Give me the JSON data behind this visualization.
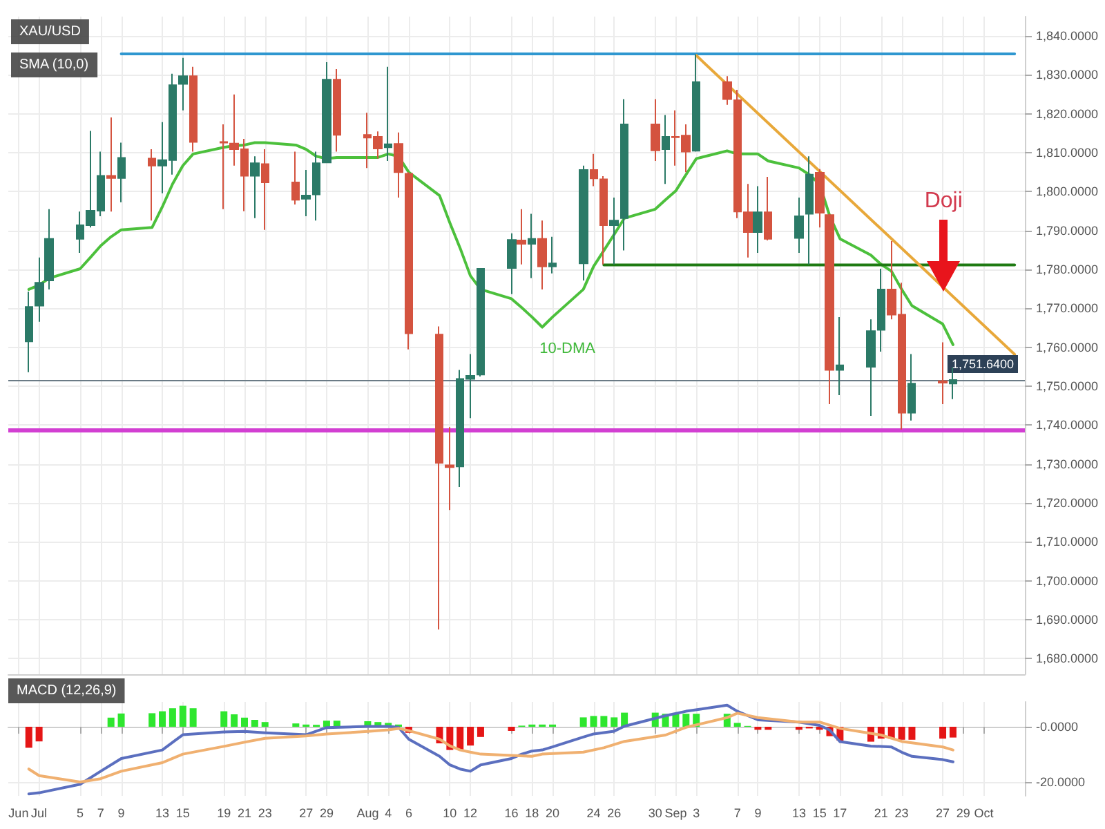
{
  "chart_data": [
    {
      "type": "candlestick",
      "title": "XAU/USD",
      "subtitle": "SMA (10,0)",
      "xlim": [
        "--06-28",
        "--10-05"
      ],
      "ylim": [
        1676,
        1845
      ],
      "xticks": [
        {
          "value": "--06-29",
          "label": "Jun"
        },
        {
          "value": "--07-01",
          "label": "Jul"
        },
        {
          "value": "--07-05",
          "label": "5"
        },
        {
          "value": "--07-07",
          "label": "7"
        },
        {
          "value": "--07-09",
          "label": "9"
        },
        {
          "value": "--07-13",
          "label": "13"
        },
        {
          "value": "--07-15",
          "label": "15"
        },
        {
          "value": "--07-19",
          "label": "19"
        },
        {
          "value": "--07-21",
          "label": "21"
        },
        {
          "value": "--07-23",
          "label": "23"
        },
        {
          "value": "--07-27",
          "label": "27"
        },
        {
          "value": "--07-29",
          "label": "29"
        },
        {
          "value": "--08-02",
          "label": "Aug"
        },
        {
          "value": "--08-04",
          "label": "4"
        },
        {
          "value": "--08-06",
          "label": "6"
        },
        {
          "value": "--08-10",
          "label": "10"
        },
        {
          "value": "--08-12",
          "label": "12"
        },
        {
          "value": "--08-16",
          "label": "16"
        },
        {
          "value": "--08-18",
          "label": "18"
        },
        {
          "value": "--08-20",
          "label": "20"
        },
        {
          "value": "--08-24",
          "label": "24"
        },
        {
          "value": "--08-26",
          "label": "26"
        },
        {
          "value": "--08-30",
          "label": "30"
        },
        {
          "value": "--09-01",
          "label": "Sep"
        },
        {
          "value": "--09-03",
          "label": "3"
        },
        {
          "value": "--09-07",
          "label": "7"
        },
        {
          "value": "--09-09",
          "label": "9"
        },
        {
          "value": "--09-13",
          "label": "13"
        },
        {
          "value": "--09-15",
          "label": "15"
        },
        {
          "value": "--09-17",
          "label": "17"
        },
        {
          "value": "--09-21",
          "label": "21"
        },
        {
          "value": "--09-23",
          "label": "23"
        },
        {
          "value": "--09-27",
          "label": "27"
        },
        {
          "value": "--09-29",
          "label": "29"
        },
        {
          "value": "--10-01",
          "label": "Oct"
        }
      ],
      "yticks": [
        {
          "value": 1680,
          "label": "1,680.0000"
        },
        {
          "value": 1690,
          "label": "1,690.0000"
        },
        {
          "value": 1700,
          "label": "1,700.0000"
        },
        {
          "value": 1710,
          "label": "1,710.0000"
        },
        {
          "value": 1720,
          "label": "1,720.0000"
        },
        {
          "value": 1730,
          "label": "1,730.0000"
        },
        {
          "value": 1740,
          "label": "1,740.0000"
        },
        {
          "value": 1750,
          "label": "1,750.0000"
        },
        {
          "value": 1760,
          "label": "1,760.0000"
        },
        {
          "value": 1770,
          "label": "1,770.0000"
        },
        {
          "value": 1780,
          "label": "1,780.0000"
        },
        {
          "value": 1790,
          "label": "1,790.0000"
        },
        {
          "value": 1800,
          "label": "1,800.0000"
        },
        {
          "value": 1810,
          "label": "1,810.0000"
        },
        {
          "value": 1820,
          "label": "1,820.0000"
        },
        {
          "value": 1830,
          "label": "1,830.0000"
        },
        {
          "value": 1840,
          "label": "1,840.0000"
        }
      ],
      "tick_labels": "y",
      "grid": true,
      "series": [
        {
          "x": [
            "--06-30",
            "--07-01",
            "--07-02",
            "--07-05",
            "--07-06",
            "--07-07",
            "--07-08",
            "--07-09",
            "--07-12",
            "--07-13",
            "--07-14",
            "--07-15",
            "--07-16",
            "--07-19",
            "--07-20",
            "--07-21",
            "--07-22",
            "--07-23",
            "--07-26",
            "--07-27",
            "--07-28",
            "--07-29",
            "--07-30",
            "--08-02",
            "--08-03",
            "--08-04",
            "--08-05",
            "--08-06",
            "--08-09",
            "--08-10",
            "--08-11",
            "--08-12",
            "--08-13",
            "--08-16",
            "--08-17",
            "--08-18",
            "--08-19",
            "--08-20",
            "--08-23",
            "--08-24",
            "--08-25",
            "--08-26",
            "--08-27",
            "--08-30",
            "--08-31",
            "--09-01",
            "--09-02",
            "--09-03",
            "--09-06",
            "--09-07",
            "--09-08",
            "--09-09",
            "--09-10",
            "--09-13",
            "--09-14",
            "--09-15",
            "--09-16",
            "--09-17",
            "--09-20",
            "--09-21",
            "--09-22",
            "--09-23",
            "--09-24",
            "--09-27",
            "--09-28"
          ],
          "ohlc": [
            [
              1761.5,
              1774.3,
              1753.6,
              1770.4
            ],
            [
              1770.7,
              1783.1,
              1766.6,
              1776.6
            ],
            [
              1777.2,
              1795.5,
              1774.9,
              1787.9
            ],
            [
              1787.9,
              1794.9,
              1784.3,
              1791.4
            ],
            [
              1791.4,
              1815.6,
              1790.8,
              1795.1
            ],
            [
              1795.1,
              1810.3,
              1793.7,
              1804.1
            ],
            [
              1804.1,
              1819.1,
              1794.9,
              1803.5
            ],
            [
              1803.5,
              1812.6,
              1797.3,
              1808.7
            ],
            [
              1808.5,
              1810.9,
              1792.6,
              1806.7
            ],
            [
              1806.7,
              1817.9,
              1799.6,
              1808.1
            ],
            [
              1808.1,
              1830.3,
              1804.4,
              1827.4
            ],
            [
              1827.7,
              1834.4,
              1820.9,
              1829.7
            ],
            [
              1829.7,
              1832.1,
              1810.3,
              1812.8
            ],
            [
              1812.8,
              1817.3,
              1795.5,
              1812.6
            ],
            [
              1812.4,
              1825.0,
              1806.7,
              1810.9
            ],
            [
              1810.9,
              1813.6,
              1795.0,
              1804.1
            ],
            [
              1804.1,
              1809.1,
              1793.2,
              1807.3
            ],
            [
              1807.1,
              1810.9,
              1790.2,
              1802.4
            ],
            [
              1802.4,
              1810.3,
              1796.7,
              1797.9
            ],
            [
              1798.2,
              1805.6,
              1793.7,
              1799.0
            ],
            [
              1799.3,
              1810.3,
              1792.6,
              1807.3
            ],
            [
              1807.5,
              1833.3,
              1807.3,
              1828.8
            ],
            [
              1828.8,
              1831.5,
              1810.3,
              1814.6
            ],
            [
              1814.6,
              1820.3,
              1806.1,
              1813.9
            ],
            [
              1814.1,
              1815.5,
              1808.5,
              1811.1
            ],
            [
              1811.4,
              1832.1,
              1807.9,
              1812.2
            ],
            [
              1812.3,
              1815.2,
              1798.5,
              1805.0
            ],
            [
              1804.6,
              1805.0,
              1759.5,
              1763.6
            ],
            [
              1763.3,
              1765.4,
              1687.5,
              1730.3
            ],
            [
              1729.7,
              1739.5,
              1718.2,
              1729.2
            ],
            [
              1729.4,
              1754.2,
              1724.1,
              1751.9
            ],
            [
              1751.9,
              1758.3,
              1741.8,
              1752.7
            ],
            [
              1753.0,
              1780.2,
              1752.5,
              1780.2
            ],
            [
              1780.4,
              1789.3,
              1773.7,
              1787.6
            ],
            [
              1787.5,
              1795.5,
              1781.3,
              1786.6
            ],
            [
              1786.6,
              1794.3,
              1777.8,
              1787.9
            ],
            [
              1787.9,
              1792.6,
              1774.9,
              1780.8
            ],
            [
              1780.8,
              1788.4,
              1779.0,
              1781.6
            ],
            [
              1781.6,
              1806.7,
              1777.2,
              1805.6
            ],
            [
              1805.6,
              1809.7,
              1801.4,
              1803.4
            ],
            [
              1803.2,
              1804.0,
              1781.3,
              1791.4
            ],
            [
              1791.4,
              1798.5,
              1781.3,
              1792.6
            ],
            [
              1793.2,
              1823.8,
              1784.9,
              1817.3
            ],
            [
              1817.3,
              1823.8,
              1807.9,
              1810.6
            ],
            [
              1810.9,
              1819.7,
              1802.0,
              1814.1
            ],
            [
              1814.1,
              1820.9,
              1806.7,
              1814.0
            ],
            [
              1814.4,
              1817.3,
              1805.0,
              1810.3
            ],
            [
              1810.5,
              1835.3,
              1810.3,
              1828.2
            ],
            [
              1828.2,
              1829.7,
              1822.3,
              1823.8
            ],
            [
              1823.5,
              1826.2,
              1793.2,
              1794.9
            ],
            [
              1794.7,
              1802.0,
              1783.1,
              1789.6
            ],
            [
              1789.6,
              1801.4,
              1784.3,
              1794.7
            ],
            [
              1794.7,
              1803.8,
              1787.5,
              1787.9
            ],
            [
              1788.1,
              1798.5,
              1784.3,
              1793.7
            ],
            [
              1794.3,
              1809.1,
              1781.3,
              1804.4
            ],
            [
              1804.9,
              1805.8,
              1790.8,
              1794.6
            ],
            [
              1794.0,
              1794.3,
              1745.4,
              1754.2
            ],
            [
              1754.2,
              1767.8,
              1747.7,
              1755.4
            ],
            [
              1755.0,
              1767.2,
              1742.4,
              1764.2
            ],
            [
              1764.5,
              1780.2,
              1758.9,
              1774.9
            ],
            [
              1774.9,
              1787.3,
              1767.2,
              1768.4
            ],
            [
              1768.4,
              1776.6,
              1738.9,
              1743.2
            ],
            [
              1743.2,
              1758.3,
              1741.2,
              1750.7
            ],
            [
              1751.3,
              1761.3,
              1745.4,
              1750.9
            ],
            [
              1750.7,
              1754.8,
              1746.7,
              1751.64
            ]
          ],
          "colors": [
            "#2b7a67",
            "#2b7a67",
            "#2b7a67",
            "#2b7a67",
            "#2b7a67",
            "#2b7a67",
            "#d4533f",
            "#2b7a67",
            "#d4533f",
            "#2b7a67",
            "#2b7a67",
            "#2b7a67",
            "#d4533f",
            "#d4533f",
            "#d4533f",
            "#d4533f",
            "#2b7a67",
            "#d4533f",
            "#d4533f",
            "#2b7a67",
            "#2b7a67",
            "#2b7a67",
            "#d4533f",
            "#d4533f",
            "#d4533f",
            "#2b7a67",
            "#d4533f",
            "#d4533f",
            "#d4533f",
            "#d4533f",
            "#2b7a67",
            "#2b7a67",
            "#2b7a67",
            "#2b7a67",
            "#d4533f",
            "#2b7a67",
            "#d4533f",
            "#2b7a67",
            "#2b7a67",
            "#d4533f",
            "#d4533f",
            "#2b7a67",
            "#2b7a67",
            "#d4533f",
            "#2b7a67",
            "#d4533f",
            "#d4533f",
            "#2b7a67",
            "#d4533f",
            "#d4533f",
            "#d4533f",
            "#2b7a67",
            "#d4533f",
            "#2b7a67",
            "#2b7a67",
            "#d4533f",
            "#d4533f",
            "#2b7a67",
            "#2b7a67",
            "#2b7a67",
            "#d4533f",
            "#d4533f",
            "#2b7a67",
            "#d4533f",
            "#2b7a67"
          ]
        },
        {
          "type": "line",
          "color": "#4cc03c",
          "x": [
            "--06-30",
            "--07-01",
            "--07-02",
            "--07-05",
            "--07-06",
            "--07-07",
            "--07-08",
            "--07-09",
            "--07-12",
            "--07-13",
            "--07-14",
            "--07-15",
            "--07-16",
            "--07-19",
            "--07-20",
            "--07-21",
            "--07-22",
            "--07-23",
            "--07-26",
            "--07-27",
            "--07-28",
            "--07-29",
            "--07-30",
            "--08-02",
            "--08-03",
            "--08-04",
            "--08-05",
            "--08-06",
            "--08-09",
            "--08-10",
            "--08-11",
            "--08-12",
            "--08-13",
            "--08-16",
            "--08-17",
            "--08-18",
            "--08-19",
            "--08-20",
            "--08-23",
            "--08-24",
            "--08-25",
            "--08-26",
            "--08-27",
            "--08-30",
            "--08-31",
            "--09-01",
            "--09-02",
            "--09-03",
            "--09-06",
            "--09-07",
            "--09-08",
            "--09-09",
            "--09-10",
            "--09-13",
            "--09-14",
            "--09-15",
            "--09-16",
            "--09-17",
            "--09-20",
            "--09-21",
            "--09-22",
            "--09-23",
            "--09-24",
            "--09-27",
            "--09-28"
          ],
          "values": [
            1774.9,
            1776.0,
            1777.8,
            1780.2,
            1783.1,
            1786.1,
            1788.4,
            1790.2,
            1790.8,
            1796.1,
            1802.0,
            1806.7,
            1809.7,
            1811.4,
            1811.8,
            1812.0,
            1812.6,
            1812.6,
            1812.0,
            1810.9,
            1809.1,
            1808.5,
            1808.8,
            1808.8,
            1808.8,
            1809.7,
            1809.1,
            1805.0,
            1799.0,
            1792.0,
            1785.5,
            1778.4,
            1774.9,
            1772.5,
            1770.2,
            1767.8,
            1765.2,
            1767.8,
            1774.9,
            1780.8,
            1784.9,
            1789.0,
            1793.2,
            1795.5,
            1797.9,
            1800.2,
            1804.4,
            1808.5,
            1810.5,
            1809.7,
            1809.7,
            1809.7,
            1807.9,
            1806.1,
            1804.4,
            1802.0,
            1793.7,
            1787.9,
            1783.7,
            1781.3,
            1779.6,
            1774.9,
            1770.7,
            1766.0,
            1760.7
          ]
        },
        {
          "type": "line",
          "color": "#2f97d0",
          "x": [
            "--07-09",
            "--10-04"
          ],
          "values": [
            1835.4,
            1835.4
          ]
        },
        {
          "type": "line",
          "color": "#1e7a12",
          "x": [
            "--08-25",
            "--10-04"
          ],
          "values": [
            1781.2,
            1781.2
          ]
        },
        {
          "type": "line",
          "color": "#e8a83a",
          "x": [
            "--09-03",
            "--10-04"
          ],
          "values": [
            1835.0,
            1758.2
          ]
        }
      ],
      "ref_lines": [
        {
          "axis": "y",
          "value": 1738.8,
          "color": "#d23fd2"
        },
        {
          "axis": "y",
          "value": 1751.64,
          "label": "1,751.6400",
          "color": "#6b7b86"
        }
      ],
      "annotations": [
        "Doji",
        "10-DMA"
      ]
    },
    {
      "type": "bar",
      "title": "MACD (12,26,9)",
      "xlim": [
        "--06-28",
        "--10-05"
      ],
      "ylim": [
        -25,
        9
      ],
      "xticks": [
        {
          "value": "--06-29",
          "label": "Jun"
        },
        {
          "value": "--07-01",
          "label": "Jul"
        },
        {
          "value": "--07-05",
          "label": "5"
        },
        {
          "value": "--07-07",
          "label": "7"
        },
        {
          "value": "--07-09",
          "label": "9"
        },
        {
          "value": "--07-13",
          "label": "13"
        },
        {
          "value": "--07-15",
          "label": "15"
        },
        {
          "value": "--07-19",
          "label": "19"
        },
        {
          "value": "--07-21",
          "label": "21"
        },
        {
          "value": "--07-23",
          "label": "23"
        },
        {
          "value": "--07-27",
          "label": "27"
        },
        {
          "value": "--07-29",
          "label": "29"
        },
        {
          "value": "--08-02",
          "label": "Aug"
        },
        {
          "value": "--08-04",
          "label": "4"
        },
        {
          "value": "--08-06",
          "label": "6"
        },
        {
          "value": "--08-10",
          "label": "10"
        },
        {
          "value": "--08-12",
          "label": "12"
        },
        {
          "value": "--08-16",
          "label": "16"
        },
        {
          "value": "--08-18",
          "label": "18"
        },
        {
          "value": "--08-20",
          "label": "20"
        },
        {
          "value": "--08-24",
          "label": "24"
        },
        {
          "value": "--08-26",
          "label": "26"
        },
        {
          "value": "--08-30",
          "label": "30"
        },
        {
          "value": "--09-01",
          "label": "Sep"
        },
        {
          "value": "--09-03",
          "label": "3"
        },
        {
          "value": "--09-07",
          "label": "7"
        },
        {
          "value": "--09-09",
          "label": "9"
        },
        {
          "value": "--09-13",
          "label": "13"
        },
        {
          "value": "--09-15",
          "label": "15"
        },
        {
          "value": "--09-17",
          "label": "17"
        },
        {
          "value": "--09-21",
          "label": "21"
        },
        {
          "value": "--09-23",
          "label": "23"
        },
        {
          "value": "--09-27",
          "label": "27"
        },
        {
          "value": "--09-29",
          "label": "29"
        },
        {
          "value": "--10-01",
          "label": "Oct"
        }
      ],
      "yticks": [
        {
          "value": 0,
          "label": "-0.0000"
        },
        {
          "value": -20,
          "label": "-20.0000"
        }
      ],
      "grid": true,
      "series": [
        {
          "x": [
            "--06-30",
            "--07-01",
            "--07-02",
            "--07-05",
            "--07-06",
            "--07-07",
            "--07-08",
            "--07-09",
            "--07-12",
            "--07-13",
            "--07-14",
            "--07-15",
            "--07-16",
            "--07-19",
            "--07-20",
            "--07-21",
            "--07-22",
            "--07-23",
            "--07-26",
            "--07-27",
            "--07-28",
            "--07-29",
            "--07-30",
            "--08-02",
            "--08-03",
            "--08-04",
            "--08-05",
            "--08-06",
            "--08-09",
            "--08-10",
            "--08-11",
            "--08-12",
            "--08-13",
            "--08-16",
            "--08-17",
            "--08-18",
            "--08-19",
            "--08-20",
            "--08-23",
            "--08-24",
            "--08-25",
            "--08-26",
            "--08-27",
            "--08-30",
            "--08-31",
            "--09-01",
            "--09-02",
            "--09-03",
            "--09-06",
            "--09-07",
            "--09-08",
            "--09-09",
            "--09-10",
            "--09-13",
            "--09-14",
            "--09-15",
            "--09-16",
            "--09-17",
            "--09-20",
            "--09-21",
            "--09-22",
            "--09-23",
            "--09-24",
            "--09-27",
            "--09-28"
          ],
          "values": [
            -7.6,
            -5.3,
            null,
            null,
            null,
            null,
            3.3,
            4.8,
            4.9,
            5.6,
            6.7,
            7.6,
            6.7,
            5.6,
            4.5,
            3.3,
            2.5,
            1.7,
            1.2,
            0.8,
            0.7,
            2.2,
            2.2,
            2.0,
            1.7,
            1.4,
            0.8,
            -2.2,
            -6.0,
            -8.4,
            -8.2,
            -6.8,
            -3.7,
            -1.5,
            0.4,
            0.8,
            0.8,
            0.8,
            3.4,
            3.9,
            3.9,
            3.4,
            5.1,
            5.1,
            4.7,
            4.7,
            4.7,
            4.7,
            4.7,
            1.4,
            0.3,
            -1.1,
            -1.1,
            -1.1,
            -0.6,
            -1.1,
            -3.4,
            -5.0,
            -5.4,
            -4.3,
            -4.3,
            -4.7,
            -4.7,
            -4.3,
            -3.9
          ],
          "colors": [
            "#e51616",
            "#e51616",
            "#e51616",
            "#e51616",
            "#e51616",
            "#2ee62e",
            "#2ee62e",
            "#2ee62e",
            "#2ee62e",
            "#2ee62e",
            "#2ee62e",
            "#2ee62e",
            "#2ee62e",
            "#2ee62e",
            "#2ee62e",
            "#2ee62e",
            "#2ee62e",
            "#2ee62e",
            "#2ee62e",
            "#2ee62e",
            "#2ee62e",
            "#2ee62e",
            "#2ee62e",
            "#2ee62e",
            "#2ee62e",
            "#2ee62e",
            "#2ee62e",
            "#e51616",
            "#e51616",
            "#e51616",
            "#e51616",
            "#e51616",
            "#e51616",
            "#e51616",
            "#2ee62e",
            "#2ee62e",
            "#2ee62e",
            "#2ee62e",
            "#2ee62e",
            "#2ee62e",
            "#2ee62e",
            "#2ee62e",
            "#2ee62e",
            "#2ee62e",
            "#2ee62e",
            "#2ee62e",
            "#2ee62e",
            "#2ee62e",
            "#2ee62e",
            "#2ee62e",
            "#2ee62e",
            "#e51616",
            "#e51616",
            "#e51616",
            "#e51616",
            "#e51616",
            "#e51616",
            "#e51616",
            "#e51616",
            "#e51616",
            "#e51616",
            "#e51616",
            "#e51616",
            "#e51616",
            "#e51616"
          ]
        },
        {
          "type": "line",
          "color": "#5b6fbf",
          "x": [
            "--06-30",
            "--07-01",
            "--07-05",
            "--07-07",
            "--07-09",
            "--07-13",
            "--07-15",
            "--07-19",
            "--07-21",
            "--07-23",
            "--07-27",
            "--07-29",
            "--08-02",
            "--08-04",
            "--08-05",
            "--08-06",
            "--08-09",
            "--08-10",
            "--08-11",
            "--08-12",
            "--08-13",
            "--08-16",
            "--08-17",
            "--08-18",
            "--08-19",
            "--08-20",
            "--08-23",
            "--08-24",
            "--08-26",
            "--08-27",
            "--08-31",
            "--09-02",
            "--09-06",
            "--09-07",
            "--09-09",
            "--09-13",
            "--09-15",
            "--09-16",
            "--09-17",
            "--09-20",
            "--09-22",
            "--09-23",
            "--09-24",
            "--09-27",
            "--09-28"
          ],
          "values": [
            -24.3,
            -23.9,
            -20.8,
            -16.1,
            -11.5,
            -8.4,
            -2.9,
            -1.9,
            -1.7,
            -2.2,
            -2.9,
            -0.3,
            0.1,
            0.1,
            -0.2,
            -4.5,
            -10.7,
            -13.8,
            -15.3,
            -16.1,
            -13.8,
            -11.5,
            -9.9,
            -8.8,
            -8.4,
            -7.3,
            -3.7,
            -2.6,
            -1.6,
            0.2,
            4.0,
            5.6,
            7.8,
            5.6,
            2.5,
            1.7,
            0.5,
            -1.2,
            -5.4,
            -7.0,
            -7.3,
            -9.2,
            -10.7,
            -11.9,
            -12.7
          ]
        },
        {
          "type": "line",
          "color": "#f0b070",
          "x": [
            "--06-30",
            "--07-01",
            "--07-05",
            "--07-07",
            "--07-09",
            "--07-13",
            "--07-15",
            "--07-19",
            "--07-21",
            "--07-23",
            "--07-27",
            "--07-29",
            "--08-02",
            "--08-04",
            "--08-05",
            "--08-06",
            "--08-09",
            "--08-10",
            "--08-11",
            "--08-12",
            "--08-13",
            "--08-16",
            "--08-18",
            "--08-19",
            "--08-23",
            "--08-25",
            "--08-27",
            "--08-31",
            "--09-02",
            "--09-06",
            "--09-07",
            "--09-09",
            "--09-13",
            "--09-15",
            "--09-17",
            "--09-21",
            "--09-23",
            "--09-27",
            "--09-28"
          ],
          "values": [
            -15.3,
            -17.7,
            -20.0,
            -18.8,
            -16.1,
            -13.0,
            -9.9,
            -7.1,
            -5.6,
            -4.2,
            -3.3,
            -2.6,
            -1.7,
            -1.1,
            -0.6,
            -1.4,
            -4.5,
            -6.9,
            -8.4,
            -9.2,
            -9.9,
            -10.4,
            -10.7,
            -9.9,
            -9.2,
            -7.6,
            -5.3,
            -3.0,
            -0.2,
            3.3,
            4.9,
            3.3,
            1.7,
            1.7,
            -0.6,
            -3.0,
            -5.3,
            -7.3,
            -8.4
          ]
        }
      ]
    }
  ]
}
